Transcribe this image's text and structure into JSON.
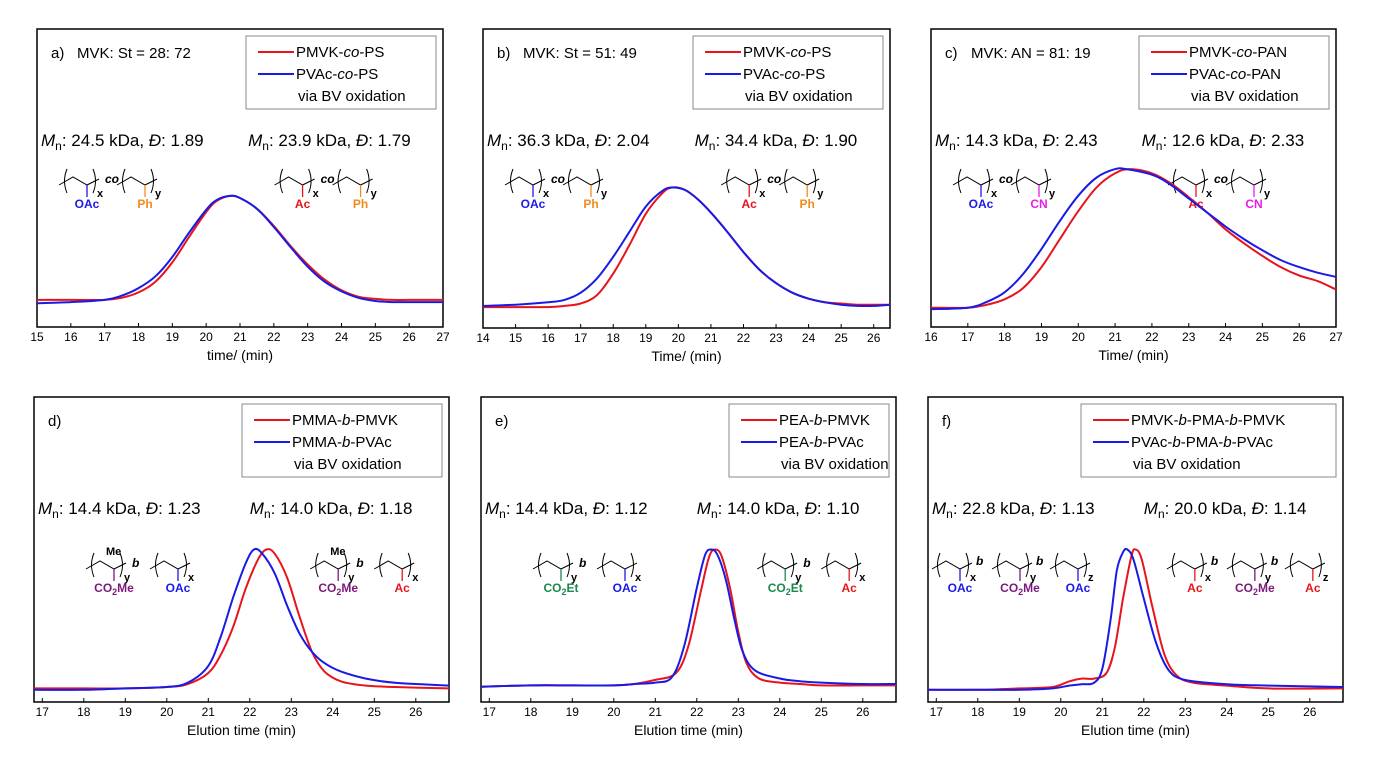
{
  "colors": {
    "red": "#e8141c",
    "blue": "#1a1ae6",
    "orange": "#f08c1e",
    "magenta": "#e61ee6",
    "purple": "#7a1a7a",
    "green": "#1a8a4a"
  },
  "chart_data": [
    {
      "type": "line",
      "panel": "a)",
      "title": "MVK: St = 28: 72",
      "xlabel": "time/ (min)",
      "ylabel": "",
      "xlim": [
        15,
        27
      ],
      "xticks": [
        "15",
        "16",
        "17",
        "18",
        "19",
        "20",
        "21",
        "22",
        "23",
        "24",
        "25",
        "26",
        "27"
      ],
      "legend": {
        "placement": "top-right",
        "entries": [
          "PMVK-co-PS",
          "PVAc-co-PS",
          "via BV oxidation"
        ]
      },
      "annotations": {
        "left": "Mn: 24.5 kDa, Đ: 1.89",
        "right": "Mn: 23.9 kDa, Đ: 1.79"
      },
      "structures": {
        "left": [
          "co",
          "x",
          "y",
          "OAc",
          "Ph"
        ],
        "right": [
          "co",
          "x",
          "y",
          "Ac",
          "Ph"
        ]
      },
      "series": [
        {
          "name": "PMVK-co-PS",
          "color": "red",
          "x": [
            15,
            16,
            17,
            17.5,
            18,
            18.5,
            19,
            19.5,
            20,
            20.3,
            20.7,
            21,
            21.5,
            22,
            22.5,
            23,
            23.5,
            24,
            24.5,
            25,
            25.5,
            26,
            27
          ],
          "y": [
            0.03,
            0.03,
            0.03,
            0.05,
            0.1,
            0.2,
            0.38,
            0.62,
            0.85,
            0.95,
            1.0,
            0.98,
            0.88,
            0.72,
            0.53,
            0.36,
            0.22,
            0.12,
            0.06,
            0.04,
            0.03,
            0.03,
            0.03
          ]
        },
        {
          "name": "PVAc-co-PS",
          "color": "blue",
          "x": [
            15,
            16,
            17,
            17.5,
            18,
            18.5,
            19,
            19.5,
            20,
            20.3,
            20.7,
            21,
            21.5,
            22,
            22.5,
            23,
            23.5,
            24,
            24.5,
            25,
            25.5,
            26,
            27
          ],
          "y": [
            0.0,
            0.01,
            0.03,
            0.07,
            0.14,
            0.25,
            0.43,
            0.66,
            0.87,
            0.96,
            1.0,
            0.98,
            0.88,
            0.71,
            0.52,
            0.34,
            0.2,
            0.11,
            0.05,
            0.02,
            0.01,
            0.01,
            0.01
          ]
        }
      ]
    },
    {
      "type": "line",
      "panel": "b)",
      "title": "MVK: St = 51: 49",
      "xlabel": "Time/ (min)",
      "ylabel": "",
      "xlim": [
        14,
        26.5
      ],
      "xticks": [
        "14",
        "15",
        "16",
        "17",
        "18",
        "19",
        "20",
        "21",
        "22",
        "23",
        "24",
        "25",
        "26"
      ],
      "legend": {
        "placement": "top-right",
        "entries": [
          "PMVK-co-PS",
          "PVAc-co-PS",
          "via BV oxidation"
        ]
      },
      "annotations": {
        "left": "Mn: 36.3 kDa, Đ: 2.04",
        "right": "Mn: 34.4 kDa, Đ: 1.90"
      },
      "structures": {
        "left": [
          "co",
          "x",
          "y",
          "OAc",
          "Ph"
        ],
        "right": [
          "co",
          "x",
          "y",
          "Ac",
          "Ph"
        ]
      },
      "series": [
        {
          "name": "PMVK-co-PS",
          "color": "red",
          "x": [
            14,
            15,
            16,
            16.5,
            17,
            17.5,
            18,
            18.5,
            19,
            19.5,
            19.8,
            20.2,
            20.6,
            21,
            21.5,
            22,
            22.5,
            23,
            23.5,
            24,
            24.5,
            25,
            25.5,
            26,
            26.5
          ],
          "y": [
            0.0,
            0.0,
            0.0,
            0.01,
            0.03,
            0.1,
            0.28,
            0.52,
            0.78,
            0.95,
            1.0,
            0.98,
            0.9,
            0.79,
            0.63,
            0.46,
            0.31,
            0.2,
            0.12,
            0.07,
            0.04,
            0.03,
            0.02,
            0.02,
            0.02
          ]
        },
        {
          "name": "PVAc-co-PS",
          "color": "blue",
          "x": [
            14,
            15,
            16,
            16.5,
            17,
            17.5,
            18,
            18.5,
            19,
            19.5,
            19.8,
            20.2,
            20.6,
            21,
            21.5,
            22,
            22.5,
            23,
            23.5,
            24,
            24.5,
            25,
            25.5,
            26,
            26.5
          ],
          "y": [
            0.01,
            0.02,
            0.04,
            0.06,
            0.12,
            0.24,
            0.42,
            0.63,
            0.84,
            0.97,
            1.0,
            0.98,
            0.9,
            0.79,
            0.63,
            0.46,
            0.31,
            0.2,
            0.12,
            0.07,
            0.04,
            0.02,
            0.01,
            0.01,
            0.02
          ]
        }
      ]
    },
    {
      "type": "line",
      "panel": "c)",
      "title": "MVK: AN = 81: 19",
      "xlabel": "Time/ (min)",
      "ylabel": "",
      "xlim": [
        16,
        27
      ],
      "xticks": [
        "16",
        "17",
        "18",
        "19",
        "20",
        "21",
        "22",
        "23",
        "24",
        "25",
        "26",
        "27"
      ],
      "legend": {
        "placement": "top-right",
        "entries": [
          "PMVK-co-PAN",
          "PVAc-co-PAN",
          "via BV oxidation"
        ]
      },
      "annotations": {
        "left": "Mn: 14.3 kDa, Đ: 2.43",
        "right": "Mn: 12.6 kDa, Đ: 2.33"
      },
      "structures": {
        "left": [
          "co",
          "x",
          "y",
          "OAc",
          "CN"
        ],
        "right": [
          "co",
          "x",
          "y",
          "Ac",
          "CN"
        ]
      },
      "series": [
        {
          "name": "PMVK-co-PAN",
          "color": "red",
          "x": [
            16,
            17,
            17.5,
            18,
            18.5,
            19,
            19.5,
            20,
            20.5,
            21,
            21.4,
            22,
            22.5,
            23,
            23.5,
            24,
            24.5,
            25,
            25.5,
            26,
            26.5,
            27
          ],
          "y": [
            0.01,
            0.01,
            0.03,
            0.07,
            0.15,
            0.3,
            0.5,
            0.7,
            0.87,
            0.97,
            1.0,
            0.97,
            0.9,
            0.8,
            0.69,
            0.57,
            0.47,
            0.38,
            0.3,
            0.24,
            0.2,
            0.14
          ]
        },
        {
          "name": "PVAc-co-PAN",
          "color": "blue",
          "x": [
            16,
            17,
            17.5,
            18,
            18.5,
            19,
            19.5,
            20,
            20.5,
            21,
            21.3,
            22,
            22.5,
            23,
            23.5,
            24,
            24.5,
            25,
            25.5,
            26,
            26.5,
            27
          ],
          "y": [
            0.0,
            0.01,
            0.05,
            0.12,
            0.25,
            0.43,
            0.63,
            0.81,
            0.94,
            1.0,
            1.0,
            0.96,
            0.89,
            0.79,
            0.69,
            0.59,
            0.5,
            0.42,
            0.35,
            0.3,
            0.26,
            0.23
          ]
        }
      ]
    },
    {
      "type": "line",
      "panel": "d)",
      "title": "",
      "xlabel": "Elution time (min)",
      "ylabel": "",
      "xlim": [
        16.8,
        26.8
      ],
      "xticks": [
        "17",
        "18",
        "19",
        "20",
        "21",
        "22",
        "23",
        "24",
        "25",
        "26"
      ],
      "legend": {
        "placement": "top-right",
        "entries": [
          "PMMA-b-PMVK",
          "PMMA-b-PVAc",
          "via BV oxidation"
        ]
      },
      "annotations": {
        "left": "Mn: 14.4 kDa, Đ: 1.23",
        "right": "Mn: 14.0 kDa, Đ: 1.18"
      },
      "structures": {
        "left": [
          "Me",
          "y",
          "b",
          "x",
          "CO2Me",
          "OAc"
        ],
        "right": [
          "Me",
          "y",
          "b",
          "x",
          "CO2Me",
          "Ac"
        ]
      },
      "series": [
        {
          "name": "PMMA-b-PMVK",
          "color": "red",
          "x": [
            16.8,
            18,
            19,
            20,
            20.5,
            21,
            21.3,
            21.6,
            21.9,
            22.2,
            22.4,
            22.6,
            22.9,
            23.2,
            23.5,
            23.8,
            24.2,
            24.8,
            25.5,
            26.8
          ],
          "y": [
            0.01,
            0.01,
            0.01,
            0.02,
            0.04,
            0.12,
            0.25,
            0.45,
            0.72,
            0.93,
            1.0,
            0.97,
            0.8,
            0.52,
            0.27,
            0.13,
            0.06,
            0.03,
            0.02,
            0.01
          ]
        },
        {
          "name": "PMMA-b-PVAc",
          "color": "blue",
          "x": [
            16.8,
            18,
            19,
            20,
            20.5,
            21,
            21.3,
            21.6,
            21.9,
            22.1,
            22.3,
            22.6,
            22.9,
            23.2,
            23.5,
            23.8,
            24.2,
            24.8,
            25.5,
            26.8
          ],
          "y": [
            0.0,
            0.0,
            0.01,
            0.02,
            0.05,
            0.17,
            0.38,
            0.66,
            0.9,
            1.0,
            0.97,
            0.83,
            0.6,
            0.4,
            0.27,
            0.19,
            0.13,
            0.08,
            0.05,
            0.03
          ]
        }
      ]
    },
    {
      "type": "line",
      "panel": "e)",
      "title": "",
      "xlabel": "Elution time (min)",
      "ylabel": "",
      "xlim": [
        16.8,
        26.8
      ],
      "xticks": [
        "17",
        "18",
        "19",
        "20",
        "21",
        "22",
        "23",
        "24",
        "25",
        "26"
      ],
      "legend": {
        "placement": "top-right",
        "entries": [
          "PEA-b-PMVK",
          "PEA-b-PVAc",
          "via BV oxidation"
        ]
      },
      "annotations": {
        "left": "Mn: 14.4 kDa, Đ: 1.12",
        "right": "Mn: 14.0 kDa, Đ: 1.10"
      },
      "structures": {
        "left": [
          "y",
          "b",
          "x",
          "CO2Et",
          "OAc"
        ],
        "right": [
          "y",
          "b",
          "x",
          "CO2Et",
          "Ac"
        ]
      },
      "series": [
        {
          "name": "PEA-b-PMVK",
          "color": "red",
          "x": [
            16.8,
            18,
            19,
            20,
            20.5,
            21,
            21.5,
            21.8,
            22.1,
            22.3,
            22.45,
            22.6,
            22.8,
            23,
            23.2,
            23.5,
            24,
            24.5,
            25,
            26,
            26.8
          ],
          "y": [
            0.0,
            0.01,
            0.01,
            0.01,
            0.02,
            0.05,
            0.1,
            0.3,
            0.7,
            0.95,
            1.0,
            0.95,
            0.72,
            0.4,
            0.17,
            0.06,
            0.03,
            0.02,
            0.01,
            0.01,
            0.01
          ]
        },
        {
          "name": "PEA-b-PVAc",
          "color": "blue",
          "x": [
            16.8,
            18,
            19,
            20,
            20.5,
            21,
            21.4,
            21.7,
            22,
            22.2,
            22.35,
            22.5,
            22.7,
            22.9,
            23.1,
            23.4,
            24,
            24.5,
            25,
            26,
            26.8
          ],
          "y": [
            0.0,
            0.01,
            0.01,
            0.01,
            0.02,
            0.03,
            0.07,
            0.3,
            0.72,
            0.96,
            1.0,
            0.96,
            0.78,
            0.5,
            0.26,
            0.12,
            0.06,
            0.04,
            0.03,
            0.02,
            0.02
          ]
        }
      ]
    },
    {
      "type": "line",
      "panel": "f)",
      "title": "",
      "xlabel": "Elution time (min)",
      "ylabel": "",
      "xlim": [
        16.8,
        26.8
      ],
      "xticks": [
        "17",
        "18",
        "19",
        "20",
        "21",
        "22",
        "23",
        "24",
        "25",
        "26"
      ],
      "legend": {
        "placement": "top-right",
        "entries": [
          "PMVK-b-PMA-b-PMVK",
          "PVAc-b-PMA-b-PVAc",
          "via BV oxidation"
        ]
      },
      "annotations": {
        "left": "Mn: 22.8 kDa, Đ: 1.13",
        "right": "Mn: 20.0 kDa, Đ: 1.14"
      },
      "structures": {
        "left": [
          "b",
          "b",
          "x",
          "y",
          "z",
          "OAc",
          "CO2Me",
          "OAc"
        ],
        "right": [
          "b",
          "b",
          "x",
          "y",
          "z",
          "Ac",
          "CO2Me",
          "Ac"
        ]
      },
      "series": [
        {
          "name": "PMVK-b-PMA-b-PMVK",
          "color": "red",
          "x": [
            16.8,
            18,
            19,
            19.8,
            20.2,
            20.5,
            20.8,
            21.1,
            21.3,
            21.5,
            21.7,
            21.8,
            21.95,
            22.2,
            22.5,
            22.8,
            23.2,
            24,
            25,
            26.8
          ],
          "y": [
            0.0,
            0.0,
            0.01,
            0.02,
            0.06,
            0.08,
            0.08,
            0.12,
            0.3,
            0.65,
            0.95,
            1.0,
            0.93,
            0.6,
            0.25,
            0.1,
            0.05,
            0.03,
            0.01,
            0.01
          ]
        },
        {
          "name": "PVAc-b-PMA-b-PVAc",
          "color": "blue",
          "x": [
            16.8,
            18,
            19,
            19.8,
            20.2,
            20.5,
            20.8,
            21.0,
            21.2,
            21.35,
            21.5,
            21.6,
            21.75,
            22.0,
            22.3,
            22.6,
            23.0,
            24,
            25,
            26.8
          ],
          "y": [
            0.0,
            0.0,
            0.0,
            0.01,
            0.03,
            0.04,
            0.05,
            0.15,
            0.5,
            0.85,
            0.98,
            1.0,
            0.93,
            0.65,
            0.33,
            0.14,
            0.07,
            0.04,
            0.03,
            0.02
          ]
        }
      ]
    }
  ]
}
